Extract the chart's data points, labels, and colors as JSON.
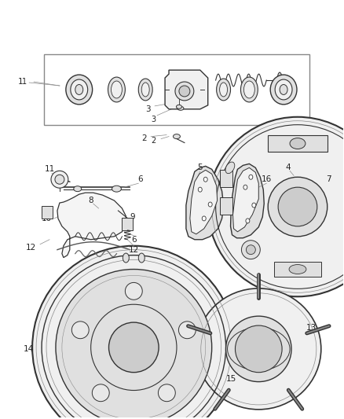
{
  "bg_color": "#ffffff",
  "fig_width": 4.38,
  "fig_height": 5.33,
  "dpi": 100,
  "text_color": "#222222",
  "line_color": "#555555",
  "dark_gray": "#333333",
  "light_gray": "#888888",
  "face_light": "#f0f0f0",
  "face_mid": "#e0e0e0",
  "face_dark": "#cccccc"
}
